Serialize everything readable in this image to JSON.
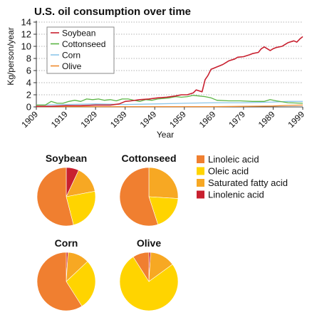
{
  "colors": {
    "soybean": "#c8202f",
    "cottonseed": "#5bb544",
    "corn": "#8ec7ea",
    "olive": "#f08a2c",
    "linoleic": "#f07f30",
    "oleic": "#ffd400",
    "saturated": "#f7a823",
    "linolenic": "#c8202f"
  },
  "chart_data": [
    {
      "type": "line",
      "title": "U.S. oil consumption over time",
      "xlabel": "Year",
      "ylabel": "Kg/person/year",
      "xlim": [
        1909,
        1999
      ],
      "ylim": [
        0,
        14
      ],
      "yticks": [
        0,
        2,
        4,
        6,
        8,
        10,
        12,
        14
      ],
      "xticks": [
        1909,
        1919,
        1929,
        1939,
        1949,
        1959,
        1969,
        1979,
        1989,
        1999
      ],
      "grid": "horizontal dotted",
      "legend_position": "top-left",
      "series": [
        {
          "name": "Soybean",
          "x": [
            1909,
            1914,
            1919,
            1924,
            1929,
            1934,
            1937,
            1939,
            1941,
            1944,
            1947,
            1950,
            1953,
            1956,
            1958,
            1960,
            1962,
            1963,
            1965,
            1966,
            1967,
            1968,
            1969,
            1970,
            1971,
            1972,
            1973,
            1974,
            1976,
            1977,
            1979,
            1981,
            1982,
            1984,
            1985,
            1986,
            1988,
            1989,
            1990,
            1992,
            1993,
            1994,
            1996,
            1997,
            1998,
            1999
          ],
          "y": [
            0.1,
            0.1,
            0.2,
            0.2,
            0.3,
            0.3,
            0.5,
            0.9,
            1.0,
            1.2,
            1.3,
            1.5,
            1.6,
            1.8,
            2.0,
            2.0,
            2.3,
            2.8,
            2.5,
            4.5,
            5.2,
            6.2,
            6.4,
            6.6,
            6.8,
            7.0,
            7.3,
            7.6,
            7.9,
            8.2,
            8.3,
            8.6,
            8.8,
            9.0,
            9.6,
            9.9,
            9.3,
            9.6,
            9.8,
            10.0,
            10.3,
            10.6,
            10.9,
            10.7,
            11.2,
            11.6
          ]
        },
        {
          "name": "Cottonseed",
          "x": [
            1909,
            1912,
            1914,
            1916,
            1918,
            1920,
            1922,
            1924,
            1926,
            1928,
            1930,
            1932,
            1934,
            1936,
            1938,
            1940,
            1942,
            1944,
            1946,
            1948,
            1950,
            1952,
            1954,
            1956,
            1958,
            1960,
            1962,
            1964,
            1966,
            1968,
            1970,
            1974,
            1978,
            1982,
            1986,
            1988,
            1990,
            1994,
            1999
          ],
          "y": [
            0.3,
            0.3,
            0.9,
            0.6,
            0.6,
            0.9,
            1.1,
            0.9,
            1.3,
            1.2,
            1.3,
            1.1,
            1.2,
            1.0,
            1.3,
            1.3,
            1.1,
            0.9,
            1.2,
            1.1,
            1.3,
            1.4,
            1.5,
            1.7,
            1.6,
            1.7,
            1.9,
            1.8,
            1.7,
            1.5,
            1.1,
            1.0,
            1.0,
            0.9,
            0.9,
            1.2,
            1.0,
            0.7,
            0.6
          ]
        },
        {
          "name": "Corn",
          "x": [
            1909,
            1919,
            1929,
            1939,
            1949,
            1959,
            1969,
            1979,
            1989,
            1994,
            1999
          ],
          "y": [
            0.3,
            0.4,
            0.5,
            0.4,
            0.5,
            0.6,
            0.7,
            0.7,
            0.8,
            0.9,
            0.9
          ]
        },
        {
          "name": "Olive",
          "x": [
            1909,
            1919,
            1929,
            1939,
            1949,
            1959,
            1969,
            1979,
            1989,
            1994,
            1999
          ],
          "y": [
            0.05,
            0.05,
            0.05,
            0.05,
            0.05,
            0.05,
            0.05,
            0.1,
            0.15,
            0.25,
            0.3
          ]
        }
      ]
    },
    {
      "type": "pie",
      "title": "Soybean",
      "categories": [
        "Linoleic acid",
        "Oleic acid",
        "Saturated fatty acid",
        "Linolenic acid"
      ],
      "values": [
        54,
        24,
        15,
        7
      ]
    },
    {
      "type": "pie",
      "title": "Cottonseed",
      "categories": [
        "Linoleic acid",
        "Oleic acid",
        "Saturated fatty acid",
        "Linolenic acid"
      ],
      "values": [
        55,
        19,
        26,
        0
      ]
    },
    {
      "type": "pie",
      "title": "Corn",
      "categories": [
        "Linoleic acid",
        "Oleic acid",
        "Saturated fatty acid",
        "Linolenic acid"
      ],
      "values": [
        59,
        28,
        12,
        1
      ]
    },
    {
      "type": "pie",
      "title": "Olive",
      "categories": [
        "Linoleic acid",
        "Oleic acid",
        "Saturated fatty acid",
        "Linolenic acid"
      ],
      "values": [
        9,
        76,
        14,
        1
      ]
    }
  ],
  "pie_legend": [
    "Linoleic acid",
    "Oleic acid",
    "Saturated fatty acid",
    "Linolenic acid"
  ]
}
